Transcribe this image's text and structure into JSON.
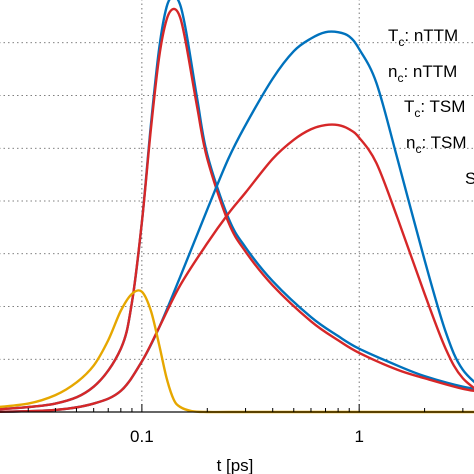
{
  "chart_data": {
    "type": "line",
    "xscale": "log",
    "xlim": [
      0.02,
      4
    ],
    "ylim": [
      0,
      1
    ],
    "xlabel": "t [ps]",
    "ylabel": "",
    "xticks": [
      {
        "value": 0.1,
        "label": "0.1"
      },
      {
        "value": 1,
        "label": "1"
      }
    ],
    "grid": true,
    "legend_position": "top-right (partially cropped)",
    "legend": [
      {
        "pre": "T",
        "sub": "c",
        "post": ": nTTM",
        "color": "#0072bd"
      },
      {
        "pre": "n",
        "sub": "c",
        "post": ": nTTM",
        "color": "#d62728"
      },
      {
        "pre": "T",
        "sub": "c",
        "post": ":  TSM",
        "color": "#0072bd"
      },
      {
        "pre": "n",
        "sub": "c",
        "post": ":  TSM",
        "color": "#d62728"
      },
      {
        "pre": "S",
        "sub": "",
        "post": "",
        "color": "#e6a700"
      }
    ],
    "series": [
      {
        "name": "Tc: nTTM",
        "color": "#0072bd",
        "x": [
          0.02,
          0.04,
          0.06,
          0.08,
          0.09,
          0.1,
          0.11,
          0.12,
          0.13,
          0.14,
          0.15,
          0.16,
          0.18,
          0.2,
          0.25,
          0.3,
          0.4,
          0.6,
          0.8,
          1,
          1.5,
          2,
          3,
          4
        ],
        "y": [
          0.005,
          0.02,
          0.06,
          0.15,
          0.26,
          0.45,
          0.68,
          0.86,
          0.96,
          0.985,
          0.965,
          0.9,
          0.74,
          0.61,
          0.46,
          0.39,
          0.31,
          0.225,
          0.18,
          0.15,
          0.11,
          0.085,
          0.06,
          0.05
        ]
      },
      {
        "name": "nc: nTTM",
        "color": "#d62728",
        "x": [
          0.02,
          0.04,
          0.06,
          0.08,
          0.09,
          0.1,
          0.11,
          0.12,
          0.13,
          0.14,
          0.15,
          0.16,
          0.18,
          0.2,
          0.25,
          0.3,
          0.4,
          0.6,
          0.8,
          1,
          1.5,
          2,
          3,
          4
        ],
        "y": [
          0.005,
          0.02,
          0.06,
          0.15,
          0.26,
          0.45,
          0.67,
          0.84,
          0.93,
          0.955,
          0.935,
          0.87,
          0.72,
          0.6,
          0.45,
          0.38,
          0.3,
          0.215,
          0.17,
          0.14,
          0.1,
          0.08,
          0.055,
          0.045
        ]
      },
      {
        "name": "Tc: TSM",
        "color": "#0072bd",
        "x": [
          0.02,
          0.04,
          0.06,
          0.08,
          0.1,
          0.12,
          0.15,
          0.2,
          0.25,
          0.3,
          0.4,
          0.5,
          0.6,
          0.7,
          0.8,
          0.9,
          1,
          1.2,
          1.5,
          2,
          2.5,
          3,
          4
        ],
        "y": [
          0.0,
          0.005,
          0.02,
          0.05,
          0.12,
          0.2,
          0.32,
          0.48,
          0.6,
          0.68,
          0.79,
          0.855,
          0.885,
          0.9,
          0.9,
          0.89,
          0.86,
          0.78,
          0.6,
          0.36,
          0.19,
          0.1,
          0.04
        ]
      },
      {
        "name": "nc: TSM",
        "color": "#d62728",
        "x": [
          0.02,
          0.04,
          0.06,
          0.08,
          0.1,
          0.12,
          0.15,
          0.2,
          0.25,
          0.3,
          0.4,
          0.5,
          0.6,
          0.7,
          0.8,
          0.9,
          1,
          1.2,
          1.5,
          2,
          2.5,
          3,
          4
        ],
        "y": [
          0.0,
          0.005,
          0.02,
          0.05,
          0.12,
          0.2,
          0.3,
          0.4,
          0.47,
          0.52,
          0.6,
          0.645,
          0.67,
          0.68,
          0.68,
          0.67,
          0.65,
          0.59,
          0.46,
          0.28,
          0.15,
          0.08,
          0.03
        ]
      },
      {
        "name": "S",
        "color": "#e6a700",
        "x": [
          0.02,
          0.03,
          0.04,
          0.05,
          0.06,
          0.07,
          0.08,
          0.09,
          0.1,
          0.11,
          0.12,
          0.13,
          0.14,
          0.15,
          0.17,
          0.2,
          0.25,
          0.5,
          4
        ],
        "y": [
          0.01,
          0.02,
          0.04,
          0.07,
          0.11,
          0.17,
          0.24,
          0.28,
          0.285,
          0.24,
          0.16,
          0.08,
          0.03,
          0.012,
          0.002,
          0.0,
          0.0,
          0.0,
          0.0
        ]
      }
    ]
  }
}
